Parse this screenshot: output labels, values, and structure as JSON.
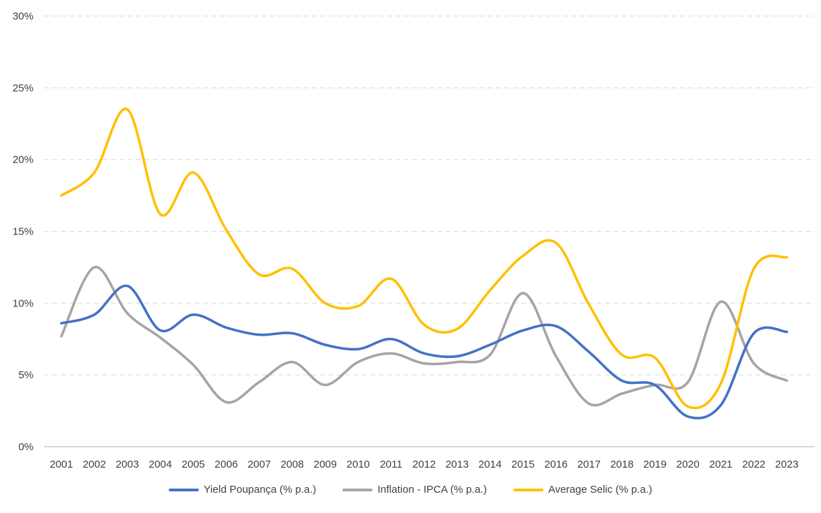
{
  "chart_data": {
    "type": "line",
    "title": "",
    "xlabel": "",
    "ylabel": "",
    "x_categories": [
      "2001",
      "2002",
      "2003",
      "2004",
      "2005",
      "2006",
      "2007",
      "2008",
      "2009",
      "2010",
      "2011",
      "2012",
      "2013",
      "2014",
      "2015",
      "2016",
      "2017",
      "2018",
      "2019",
      "2020",
      "2021",
      "2022",
      "2023"
    ],
    "y_axis": {
      "min": 0,
      "max": 30,
      "step": 5,
      "unit": "%",
      "tick_labels": [
        "0%",
        "5%",
        "10%",
        "15%",
        "20%",
        "25%",
        "30%"
      ]
    },
    "grid": "horizontal-dashed",
    "legend_position": "bottom-center",
    "line_style": "smooth",
    "series": [
      {
        "id": "yield-poupanca",
        "name": "Yield Poupança (% p.a.)",
        "color": "#4472C4",
        "values": [
          8.6,
          9.2,
          11.2,
          8.1,
          9.2,
          8.3,
          7.8,
          7.9,
          7.1,
          6.8,
          7.5,
          6.5,
          6.3,
          7.1,
          8.1,
          8.4,
          6.6,
          4.6,
          4.3,
          2.1,
          2.9,
          7.9,
          8.0
        ]
      },
      {
        "id": "inflation-ipca",
        "name": "Inflation - IPCA (% p.a.)",
        "color": "#A5A5A5",
        "values": [
          7.7,
          12.5,
          9.3,
          7.6,
          5.7,
          3.1,
          4.5,
          5.9,
          4.3,
          5.9,
          6.5,
          5.8,
          5.9,
          6.4,
          10.7,
          6.3,
          3.0,
          3.7,
          4.3,
          4.5,
          10.1,
          5.8,
          4.6
        ]
      },
      {
        "id": "average-selic",
        "name": "Average Selic (% p.a.)",
        "color": "#FFC000",
        "values": [
          17.5,
          19.1,
          23.5,
          16.2,
          19.1,
          15.1,
          12.0,
          12.4,
          10.0,
          9.8,
          11.7,
          8.5,
          8.2,
          10.9,
          13.3,
          14.2,
          9.9,
          6.4,
          6.2,
          2.8,
          4.4,
          12.4,
          13.2
        ]
      }
    ]
  },
  "colors": {
    "background": "#FFFFFF",
    "text": "#404040",
    "gridline": "#D9D9D9",
    "axis_line": "#BFBFBF"
  }
}
